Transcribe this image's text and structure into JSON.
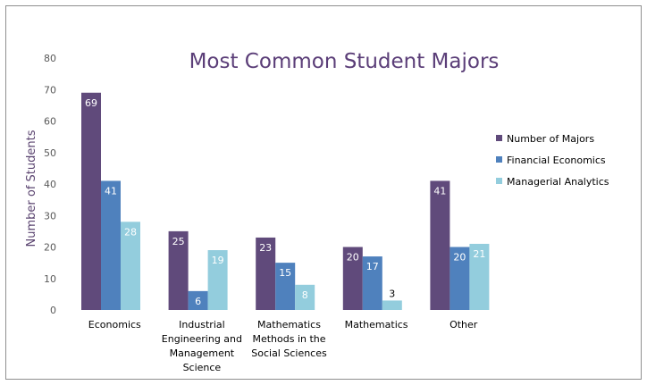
{
  "chart_data": {
    "type": "bar",
    "title": "Most Common Student Majors",
    "xlabel": "",
    "ylabel": "Number of Students",
    "ylim": [
      0,
      80
    ],
    "yticks": [
      0,
      10,
      20,
      30,
      40,
      50,
      60,
      70,
      80
    ],
    "grid": false,
    "legend_position": "right",
    "categories": [
      [
        "Economics"
      ],
      [
        "Industrial",
        "Engineering and",
        "Management",
        "Science"
      ],
      [
        "Mathematics",
        "Methods in the",
        "Social Sciences"
      ],
      [
        "Mathematics"
      ],
      [
        "Other"
      ]
    ],
    "series": [
      {
        "name": "Number of Majors",
        "color": "#604a7b",
        "label_color": "#ffffff",
        "values": [
          69,
          25,
          23,
          20,
          41
        ]
      },
      {
        "name": "Financial Economics",
        "color": "#4f81bd",
        "label_color": "#ffffff",
        "values": [
          41,
          6,
          15,
          17,
          20
        ]
      },
      {
        "name": "Managerial Analytics",
        "color": "#93cddd",
        "label_color": "#ffffff",
        "values": [
          28,
          19,
          8,
          3,
          21
        ]
      }
    ]
  }
}
